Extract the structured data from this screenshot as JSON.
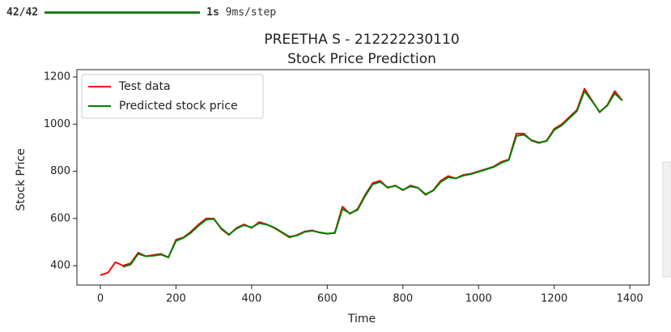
{
  "console": {
    "step": "42/42",
    "time": "1s",
    "rate": "9ms/step"
  },
  "chart_data": {
    "type": "line",
    "title": "PREETHA S - 212222230110",
    "subtitle": "Stock Price Prediction",
    "x_label": "Time",
    "y_label": "Stock Price",
    "x": [
      0,
      20,
      40,
      60,
      80,
      100,
      120,
      140,
      160,
      180,
      200,
      220,
      240,
      260,
      280,
      300,
      320,
      340,
      360,
      380,
      400,
      420,
      440,
      460,
      480,
      500,
      520,
      540,
      560,
      580,
      600,
      620,
      640,
      660,
      680,
      700,
      720,
      740,
      760,
      780,
      800,
      820,
      840,
      860,
      880,
      900,
      920,
      940,
      960,
      980,
      1000,
      1020,
      1040,
      1060,
      1080,
      1100,
      1120,
      1140,
      1160,
      1180,
      1200,
      1220,
      1240,
      1260,
      1280,
      1300,
      1320,
      1340,
      1360,
      1380
    ],
    "series": [
      {
        "name": "Test data",
        "color": "#ff0000",
        "values": [
          360,
          370,
          415,
          400,
          410,
          455,
          440,
          445,
          450,
          435,
          510,
          520,
          545,
          575,
          600,
          600,
          555,
          530,
          560,
          575,
          560,
          585,
          575,
          560,
          540,
          520,
          530,
          545,
          550,
          540,
          535,
          540,
          650,
          620,
          640,
          700,
          750,
          760,
          730,
          740,
          720,
          740,
          730,
          700,
          720,
          760,
          780,
          770,
          785,
          790,
          800,
          810,
          820,
          840,
          850,
          960,
          960,
          930,
          920,
          930,
          980,
          1000,
          1030,
          1060,
          1150,
          1100,
          1050,
          1080,
          1140,
          1100
        ]
      },
      {
        "name": "Predicted stock price",
        "color": "#008000",
        "values": [
          null,
          null,
          null,
          395,
          405,
          450,
          440,
          442,
          447,
          436,
          505,
          518,
          540,
          570,
          595,
          598,
          558,
          532,
          557,
          572,
          562,
          580,
          574,
          562,
          542,
          523,
          528,
          543,
          548,
          541,
          536,
          538,
          640,
          622,
          636,
          695,
          745,
          755,
          732,
          738,
          722,
          736,
          730,
          703,
          718,
          755,
          775,
          770,
          782,
          788,
          798,
          808,
          818,
          836,
          848,
          950,
          955,
          932,
          922,
          928,
          975,
          995,
          1025,
          1055,
          1140,
          1098,
          1052,
          1078,
          1130,
          1100
        ]
      }
    ],
    "xlim": [
      -62,
      1451
    ],
    "ylim": [
      318,
      1231
    ],
    "xticks": [
      0,
      200,
      400,
      600,
      800,
      1000,
      1200,
      1400
    ],
    "yticks": [
      400,
      600,
      800,
      1000,
      1200
    ],
    "legend": "upper left"
  }
}
